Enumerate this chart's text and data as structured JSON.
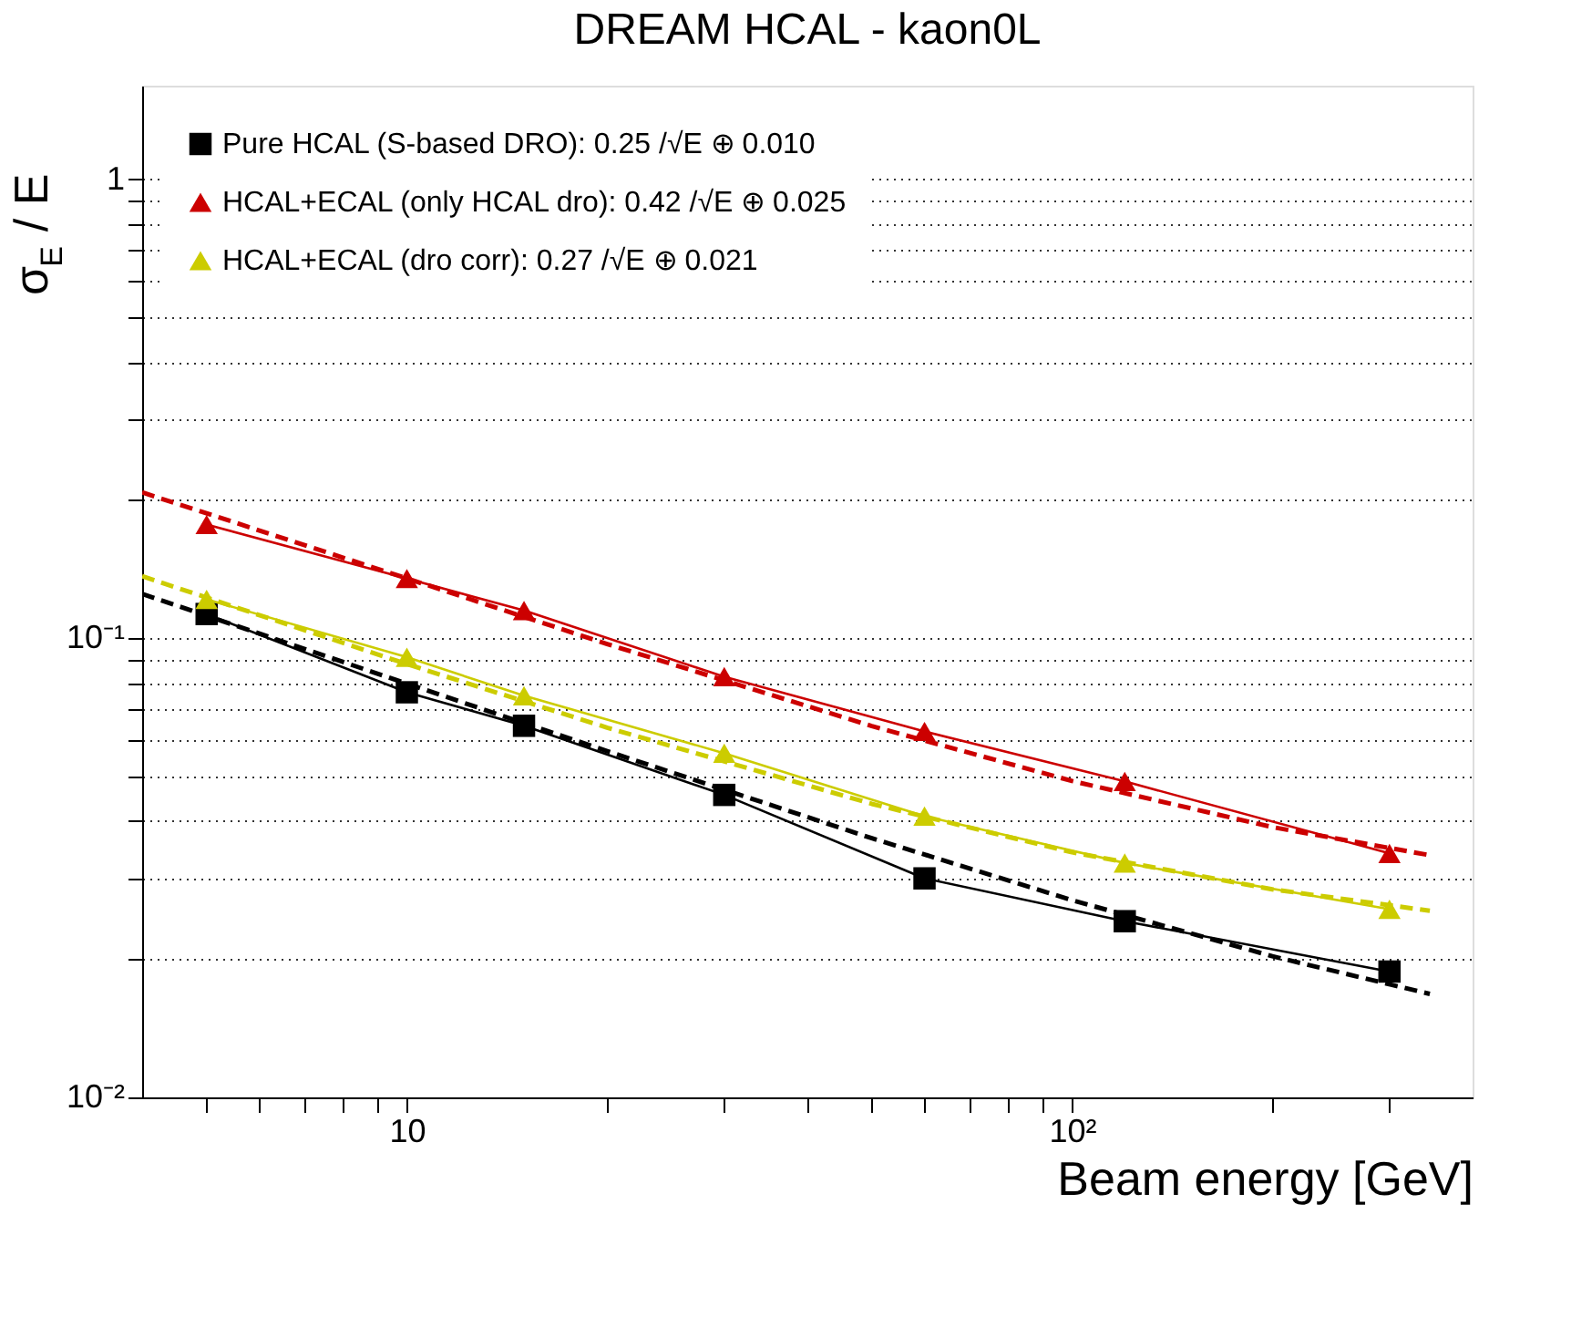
{
  "chart_data": {
    "type": "line",
    "title": "DREAM HCAL - kaon0L",
    "xlabel": "Beam energy [GeV]",
    "ylabel": "σ$_{E}$ / E",
    "log": "xy",
    "grid": "y",
    "legend": "top left",
    "xlim": [
      4,
      400
    ],
    "ylim": [
      0.01,
      1.6
    ],
    "xticks": [
      {
        "value": 5,
        "label": null
      },
      {
        "value": 6,
        "label": null
      },
      {
        "value": 7,
        "label": null
      },
      {
        "value": 8,
        "label": null
      },
      {
        "value": 9,
        "label": null
      },
      10,
      {
        "value": 20,
        "label": null
      },
      {
        "value": 30,
        "label": null
      },
      {
        "value": 40,
        "label": null
      },
      {
        "value": 50,
        "label": null
      },
      {
        "value": 60,
        "label": null
      },
      {
        "value": 70,
        "label": null
      },
      {
        "value": 80,
        "label": null
      },
      {
        "value": 90,
        "label": null
      },
      {
        "value": 100,
        "label": "10²"
      },
      {
        "value": 200,
        "label": null
      },
      {
        "value": 300,
        "label": null
      }
    ],
    "yticks": [
      {
        "value": 0.01,
        "label": "10⁻²"
      },
      {
        "value": 0.02,
        "label": null
      },
      {
        "value": 0.03,
        "label": null
      },
      {
        "value": 0.04,
        "label": null
      },
      {
        "value": 0.05,
        "label": null
      },
      {
        "value": 0.06,
        "label": null
      },
      {
        "value": 0.07,
        "label": null
      },
      {
        "value": 0.08,
        "label": null
      },
      {
        "value": 0.09,
        "label": null
      },
      {
        "value": 0.1,
        "label": "10⁻¹"
      },
      {
        "value": 0.2,
        "label": null
      },
      {
        "value": 0.3,
        "label": null
      },
      {
        "value": 0.4,
        "label": null
      },
      {
        "value": 0.5,
        "label": null
      },
      {
        "value": 0.6,
        "label": null
      },
      {
        "value": 0.7,
        "label": null
      },
      {
        "value": 0.8,
        "label": null
      },
      {
        "value": 0.9,
        "label": null
      },
      1
    ],
    "x": [
      5,
      10,
      15,
      30,
      60,
      120,
      300
    ],
    "series": [
      {
        "name": "Pure HCAL (S-based DRO): 0.25 /√E ⊕ 0.010",
        "color": "#000000",
        "marker": "square",
        "line_style": "solid",
        "values": [
          0.113,
          0.0763,
          0.0645,
          0.0456,
          0.03,
          0.0242,
          0.0188
        ]
      },
      {
        "name": "HCAL+ECAL (only HCAL dro): 0.42 /√E ⊕ 0.025",
        "color": "#cc0000",
        "marker": "triangle",
        "line_style": "solid",
        "values": [
          0.177,
          0.135,
          0.115,
          0.0825,
          0.0627,
          0.0488,
          0.034
        ]
      },
      {
        "name": "HCAL+ECAL (dro corr): 0.27 /√E ⊕ 0.021",
        "color": "#cccc00",
        "marker": "triangle",
        "line_style": "solid",
        "values": [
          0.1216,
          0.091,
          0.075,
          0.0562,
          0.041,
          0.0324,
          0.0257
        ]
      },
      {
        "color": "#000000",
        "marker": "none",
        "line_style": "dashed",
        "x": [
          4,
          10,
          20,
          50,
          100,
          200,
          345
        ],
        "values": [
          0.125,
          0.0797,
          0.0568,
          0.0367,
          0.0269,
          0.0203,
          0.0168
        ]
      },
      {
        "color": "#cc0000",
        "marker": "none",
        "line_style": "dashed",
        "x": [
          4,
          10,
          20,
          50,
          100,
          200,
          345
        ],
        "values": [
          0.208,
          0.1351,
          0.0972,
          0.0644,
          0.0489,
          0.0388,
          0.0337
        ]
      },
      {
        "color": "#cccc00",
        "marker": "none",
        "line_style": "dashed",
        "x": [
          4,
          10,
          20,
          50,
          100,
          200,
          345
        ],
        "values": [
          0.1366,
          0.0879,
          0.0639,
          0.0436,
          0.0342,
          0.0284,
          0.0255
        ]
      }
    ]
  }
}
